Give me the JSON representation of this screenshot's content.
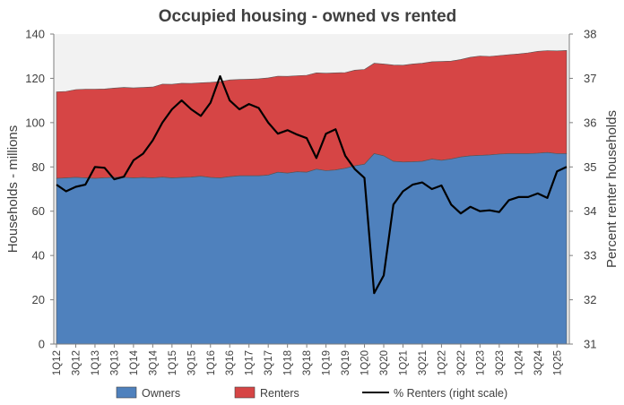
{
  "chart_data": {
    "type": "area",
    "title": "Occupied housing - owned vs rented",
    "ylabel": "Households - millions",
    "y2label": "Percent renter households",
    "ylim": [
      0,
      140
    ],
    "y2lim": [
      31,
      38
    ],
    "yticks": [
      0,
      20,
      40,
      60,
      80,
      100,
      120,
      140
    ],
    "y2ticks": [
      31,
      32,
      33,
      34,
      35,
      36,
      37,
      38
    ],
    "grid": false,
    "legend_position": "bottom",
    "x": [
      "1Q12",
      "2Q12",
      "3Q12",
      "4Q12",
      "1Q13",
      "2Q13",
      "3Q13",
      "4Q13",
      "1Q14",
      "2Q14",
      "3Q14",
      "4Q14",
      "1Q15",
      "2Q15",
      "3Q15",
      "4Q15",
      "1Q16",
      "2Q16",
      "3Q16",
      "4Q16",
      "1Q17",
      "2Q17",
      "3Q17",
      "4Q17",
      "1Q18",
      "2Q18",
      "3Q18",
      "4Q18",
      "1Q19",
      "2Q19",
      "3Q19",
      "4Q19",
      "1Q20",
      "2Q20",
      "3Q20",
      "4Q20",
      "1Q21",
      "2Q21",
      "3Q21",
      "4Q21",
      "1Q22",
      "2Q22",
      "3Q22",
      "4Q22",
      "1Q23",
      "2Q23",
      "3Q23",
      "4Q23",
      "1Q24",
      "2Q24",
      "3Q24",
      "4Q24",
      "1Q25",
      "2Q25"
    ],
    "x_tick_labels": [
      "1Q12",
      "3Q12",
      "1Q13",
      "3Q13",
      "1Q14",
      "3Q14",
      "1Q15",
      "3Q15",
      "1Q16",
      "3Q16",
      "1Q17",
      "3Q17",
      "1Q18",
      "3Q18",
      "1Q19",
      "3Q19",
      "1Q20",
      "3Q20",
      "1Q21",
      "3Q21",
      "1Q22",
      "3Q22",
      "1Q23",
      "3Q23",
      "1Q24",
      "3Q24",
      "1Q25"
    ],
    "series": [
      {
        "name": "Owners",
        "kind": "area",
        "axis": "left",
        "color": "#4f81bd",
        "values": [
          74.8,
          75.0,
          75.3,
          75.0,
          74.8,
          75.1,
          75.3,
          75.3,
          75.0,
          75.2,
          75.0,
          75.4,
          75.0,
          75.2,
          75.4,
          75.8,
          75.2,
          75.0,
          75.6,
          76.0,
          76.0,
          76.0,
          76.3,
          77.6,
          77.2,
          77.8,
          77.6,
          79.0,
          78.3,
          78.6,
          79.4,
          80.5,
          81.2,
          86.0,
          85.0,
          82.5,
          82.2,
          82.3,
          82.5,
          83.5,
          83.0,
          83.6,
          84.5,
          85.0,
          85.2,
          85.4,
          85.8,
          86.0,
          86.0,
          86.0,
          86.2,
          86.5,
          86.0,
          86.0
        ]
      },
      {
        "name": "Renters",
        "kind": "area",
        "axis": "left",
        "color": "#d64545",
        "values": [
          39.1,
          39.1,
          39.6,
          40.1,
          40.3,
          40.1,
          40.3,
          40.6,
          40.7,
          40.7,
          41.1,
          42.0,
          42.3,
          42.6,
          42.3,
          42.2,
          43.0,
          43.5,
          43.7,
          43.5,
          43.6,
          43.8,
          43.9,
          43.4,
          43.7,
          43.4,
          43.8,
          43.5,
          44.0,
          43.9,
          43.2,
          43.2,
          42.8,
          40.8,
          41.5,
          43.5,
          43.7,
          44.2,
          44.3,
          44.0,
          44.6,
          44.2,
          44.0,
          44.5,
          44.9,
          44.5,
          44.5,
          44.7,
          45.0,
          45.5,
          46.0,
          46.0,
          46.4,
          46.6
        ]
      },
      {
        "name": "% Renters (right scale)",
        "kind": "line",
        "axis": "right",
        "color": "#000000",
        "values": [
          34.6,
          34.45,
          34.55,
          34.6,
          35.0,
          34.98,
          34.72,
          34.78,
          35.15,
          35.3,
          35.6,
          36.0,
          36.3,
          36.5,
          36.3,
          36.15,
          36.45,
          37.05,
          36.5,
          36.3,
          36.42,
          36.33,
          36.0,
          35.75,
          35.83,
          35.73,
          35.65,
          35.2,
          35.75,
          35.85,
          35.25,
          34.95,
          34.75,
          32.15,
          32.55,
          34.15,
          34.45,
          34.6,
          34.65,
          34.5,
          34.58,
          34.15,
          33.95,
          34.1,
          34.0,
          34.02,
          33.98,
          34.25,
          34.32,
          34.32,
          34.4,
          34.3,
          34.9,
          35.0
        ]
      }
    ]
  }
}
